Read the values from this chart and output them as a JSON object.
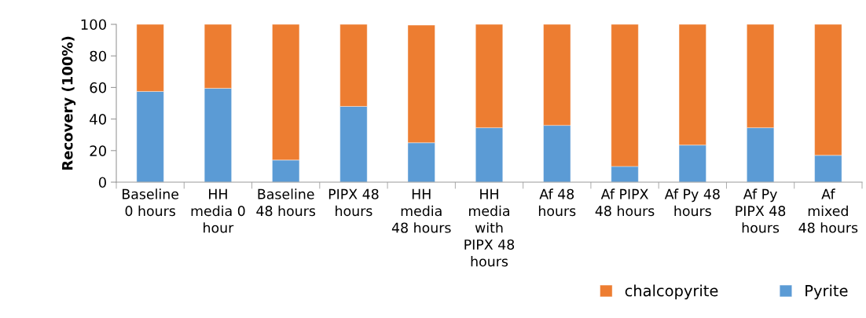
{
  "chart_data": {
    "type": "bar",
    "stacked": true,
    "ylabel": "Recovery (100%)",
    "categories": [
      "Baseline\n0 hours",
      "HH\nmedia 0\nhour",
      "Baseline\n48 hours",
      "PIPX 48\nhours",
      "HH\nmedia\n48 hours",
      "HH\nmedia\nwith\nPIPX 48\nhours",
      "Af 48\nhours",
      "Af PIPX\n48 hours",
      "Af Py 48\nhours",
      "Af Py\nPIPX 48\nhours",
      "Af\nmixed\n48 hours"
    ],
    "series": [
      {
        "name": "Pyrite",
        "color": "#5b9bd5",
        "values": [
          57.5,
          59.5,
          14,
          48,
          25,
          34.5,
          36,
          10,
          23.5,
          34.5,
          17
        ]
      },
      {
        "name": "chalcopyrite",
        "color": "#ed7d31",
        "values": [
          42.5,
          40.5,
          86,
          52,
          74.5,
          65.5,
          64,
          90,
          76.5,
          65.5,
          83
        ]
      }
    ],
    "ylim": [
      0,
      100
    ],
    "yticks": [
      0,
      20,
      40,
      60,
      80,
      100
    ],
    "grid": false,
    "legend": "bottom right"
  }
}
